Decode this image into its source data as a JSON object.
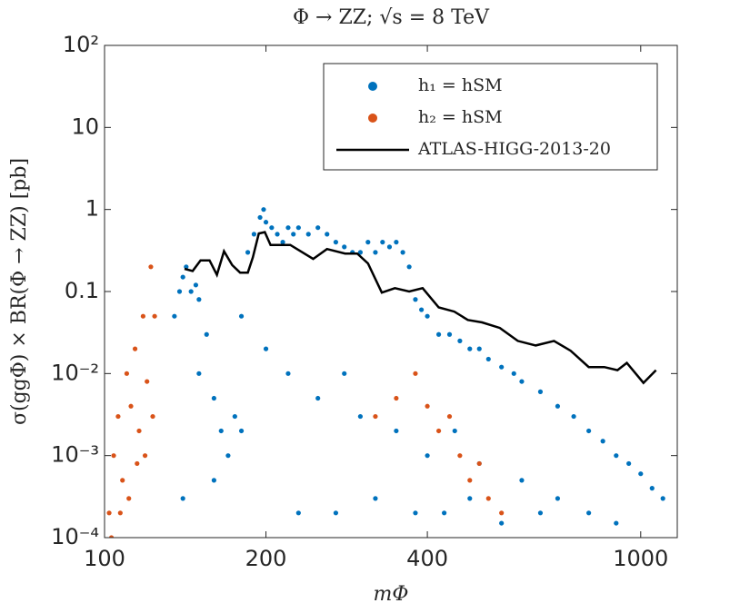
{
  "chart_data": {
    "type": "scatter",
    "title": "Φ → ZZ; √s = 8 TeV",
    "x_label": "mΦ",
    "y_label": "σ(ggΦ) × BR(Φ → ZZ) [pb]",
    "xlog": true,
    "ylog": true,
    "legend": "upper right",
    "xlim": [
      100,
      1170
    ],
    "ylim": [
      0.0001,
      100
    ],
    "xticks": [
      100,
      200,
      400,
      1000
    ],
    "yticks": [
      {
        "value": 0.0001,
        "label": "10⁻⁴"
      },
      {
        "value": 0.001,
        "label": "10⁻³"
      },
      {
        "value": 0.01,
        "label": "10⁻²"
      },
      0.1,
      1,
      10,
      {
        "value": 100,
        "label": "10²"
      }
    ],
    "series": [
      {
        "name": "h₁ = hSM",
        "color": "#0072bd",
        "kind": "scatter",
        "x": [
          135,
          138,
          140,
          142,
          145,
          148,
          150,
          155,
          160,
          165,
          170,
          175,
          180,
          185,
          190,
          195,
          198,
          200,
          205,
          210,
          215,
          220,
          225,
          230,
          240,
          250,
          260,
          270,
          280,
          290,
          300,
          310,
          320,
          330,
          340,
          350,
          360,
          370,
          380,
          390,
          400,
          420,
          440,
          460,
          480,
          500,
          520,
          550,
          580,
          600,
          650,
          700,
          750,
          800,
          850,
          900,
          950,
          1000,
          1050,
          1100,
          150,
          160,
          200,
          220,
          250,
          280,
          300,
          350,
          400,
          450,
          500,
          600,
          700,
          800,
          900,
          140,
          180,
          230,
          270,
          320,
          380,
          430,
          480,
          550,
          650
        ],
        "values": [
          0.05,
          0.1,
          0.15,
          0.2,
          0.1,
          0.12,
          0.08,
          0.03,
          0.005,
          0.002,
          0.001,
          0.003,
          0.05,
          0.3,
          0.5,
          0.8,
          1.0,
          0.7,
          0.6,
          0.5,
          0.4,
          0.6,
          0.5,
          0.6,
          0.5,
          0.6,
          0.5,
          0.4,
          0.35,
          0.3,
          0.3,
          0.4,
          0.3,
          0.4,
          0.35,
          0.4,
          0.3,
          0.2,
          0.08,
          0.06,
          0.05,
          0.03,
          0.03,
          0.025,
          0.02,
          0.02,
          0.015,
          0.012,
          0.01,
          0.008,
          0.006,
          0.004,
          0.003,
          0.002,
          0.0015,
          0.001,
          0.0008,
          0.0006,
          0.0004,
          0.0003,
          0.01,
          0.0005,
          0.02,
          0.01,
          0.005,
          0.01,
          0.003,
          0.002,
          0.001,
          0.002,
          0.0008,
          0.0005,
          0.0003,
          0.0002,
          0.00015,
          0.0003,
          0.002,
          0.0002,
          0.0002,
          0.0003,
          0.0002,
          0.0002,
          0.0003,
          0.00015,
          0.0002
        ]
      },
      {
        "name": "h₂ = hSM",
        "color": "#d95319",
        "kind": "scatter",
        "x": [
          102,
          104,
          106,
          108,
          110,
          112,
          114,
          116,
          118,
          120,
          122,
          124,
          103,
          107,
          111,
          115,
          119,
          123,
          320,
          350,
          380,
          400,
          420,
          440,
          460,
          480,
          500,
          520,
          550
        ],
        "values": [
          0.0002,
          0.001,
          0.003,
          0.0005,
          0.01,
          0.004,
          0.02,
          0.002,
          0.05,
          0.008,
          0.2,
          0.05,
          0.0001,
          0.0002,
          0.0003,
          0.0008,
          0.001,
          0.003,
          0.003,
          0.005,
          0.01,
          0.004,
          0.002,
          0.003,
          0.001,
          0.0005,
          0.0008,
          0.0003,
          0.0002
        ]
      },
      {
        "name": "ATLAS-HIGG-2013-20",
        "color": "#000000",
        "kind": "line",
        "x": [
          141,
          146,
          151,
          157,
          162,
          167,
          173,
          179,
          185,
          189,
          194,
          199,
          204,
          222,
          245,
          260,
          281,
          296,
          310,
          329,
          348,
          370,
          392,
          420,
          449,
          476,
          506,
          546,
          590,
          637,
          689,
          740,
          800,
          855,
          905,
          942,
          1012,
          1068
        ],
        "values": [
          0.189,
          0.178,
          0.24,
          0.24,
          0.16,
          0.31,
          0.21,
          0.17,
          0.17,
          0.26,
          0.51,
          0.53,
          0.37,
          0.37,
          0.25,
          0.33,
          0.29,
          0.29,
          0.22,
          0.097,
          0.11,
          0.1,
          0.11,
          0.064,
          0.057,
          0.045,
          0.042,
          0.036,
          0.025,
          0.022,
          0.025,
          0.019,
          0.012,
          0.012,
          0.011,
          0.0135,
          0.0077,
          0.011
        ]
      }
    ]
  }
}
